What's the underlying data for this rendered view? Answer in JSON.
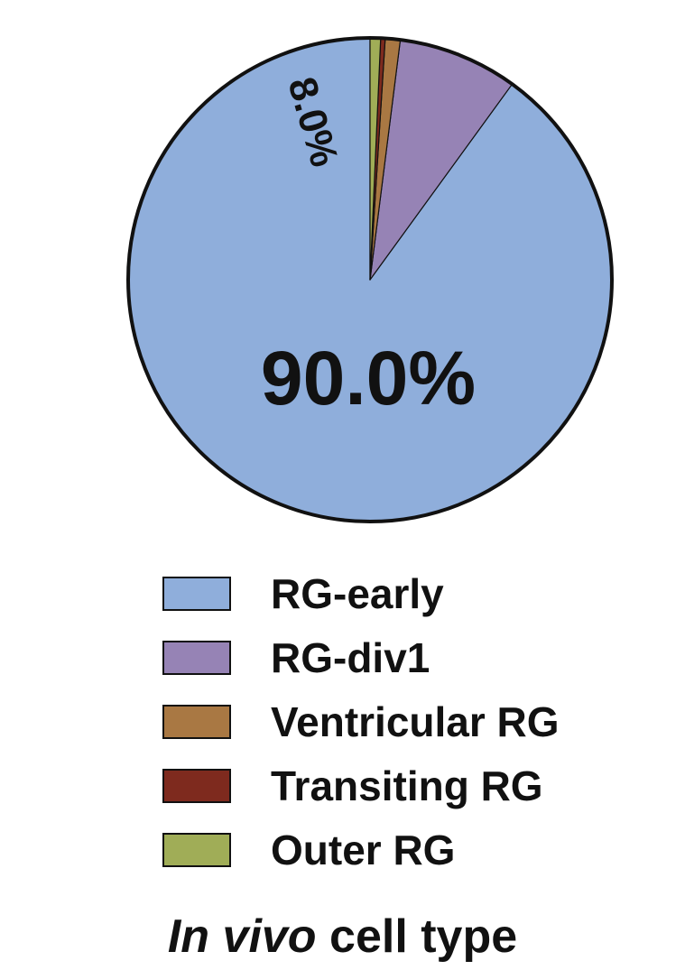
{
  "chart_data": {
    "type": "pie",
    "slices": [
      {
        "name": "RG-early",
        "value": 90.0,
        "label": "90.0%",
        "color": "#8faedb"
      },
      {
        "name": "RG-div1",
        "value": 8.0,
        "label": "8.0%",
        "color": "#9683b5"
      },
      {
        "name": "Ventricular RG",
        "value": 1.0,
        "label": "",
        "color": "#a97843"
      },
      {
        "name": "Transiting RG",
        "value": 0.3,
        "label": "",
        "color": "#7e2a1e"
      },
      {
        "name": "Outer RG",
        "value": 0.7,
        "label": "",
        "color": "#a0ad57"
      }
    ],
    "start": "12 o'clock",
    "direction": "counterclockwise",
    "legend_placement": "bottom"
  },
  "footer": {
    "italic": "In vivo",
    "rest": "cell type"
  }
}
